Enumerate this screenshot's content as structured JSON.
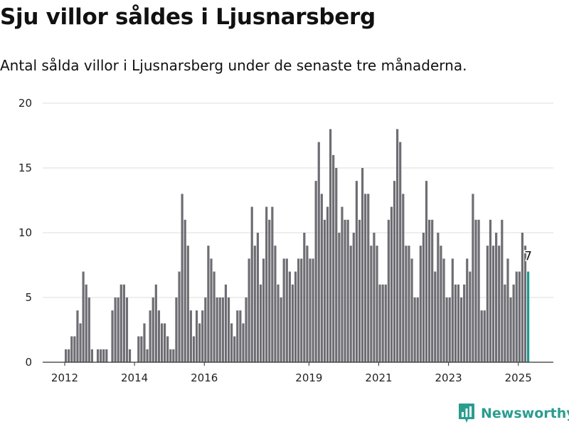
{
  "header": {
    "title": "Sju villor såldes i Ljusnarsberg",
    "subtitle": "Antal sålda villor i Ljusnarsberg under de senaste tre månaderna."
  },
  "brand": {
    "name": "Newsworthy",
    "logo_icon": "bar-chart-pin-icon",
    "color": "#2a9d8f"
  },
  "colors": {
    "bar": "#6e6d73",
    "highlight": "#1a9a8f",
    "grid": "#dddddd",
    "axis": "#333333"
  },
  "chart_data": {
    "type": "bar",
    "x_start": "2012-01",
    "x_end": "2025-04",
    "xticks": [
      "2012",
      "2014",
      "2016",
      "2019",
      "2021",
      "2023",
      "2025"
    ],
    "yticks": [
      0,
      5,
      10,
      15,
      20
    ],
    "ylim": [
      0,
      20
    ],
    "grid": true,
    "values": [
      1,
      1,
      2,
      2,
      4,
      3,
      7,
      6,
      5,
      1,
      0,
      1,
      1,
      1,
      1,
      0,
      4,
      5,
      5,
      6,
      6,
      5,
      1,
      0,
      0,
      2,
      2,
      3,
      1,
      4,
      5,
      6,
      4,
      3,
      3,
      2,
      1,
      1,
      5,
      7,
      13,
      11,
      9,
      4,
      2,
      4,
      3,
      4,
      5,
      9,
      8,
      7,
      5,
      5,
      5,
      6,
      5,
      3,
      2,
      4,
      4,
      3,
      5,
      8,
      12,
      9,
      10,
      6,
      8,
      12,
      11,
      12,
      9,
      6,
      5,
      8,
      8,
      7,
      6,
      7,
      8,
      8,
      10,
      9,
      8,
      8,
      14,
      17,
      13,
      11,
      12,
      18,
      16,
      15,
      10,
      12,
      11,
      11,
      9,
      10,
      14,
      11,
      15,
      13,
      13,
      9,
      10,
      9,
      6,
      6,
      6,
      11,
      12,
      14,
      18,
      17,
      13,
      9,
      9,
      8,
      5,
      5,
      9,
      10,
      14,
      11,
      11,
      7,
      10,
      9,
      8,
      5,
      5,
      8,
      6,
      6,
      5,
      6,
      8,
      7,
      13,
      11,
      11,
      4,
      4,
      9,
      11,
      9,
      10,
      9,
      11,
      6,
      8,
      5,
      6,
      7,
      7,
      10,
      9,
      7
    ],
    "highlight_label": "7"
  }
}
